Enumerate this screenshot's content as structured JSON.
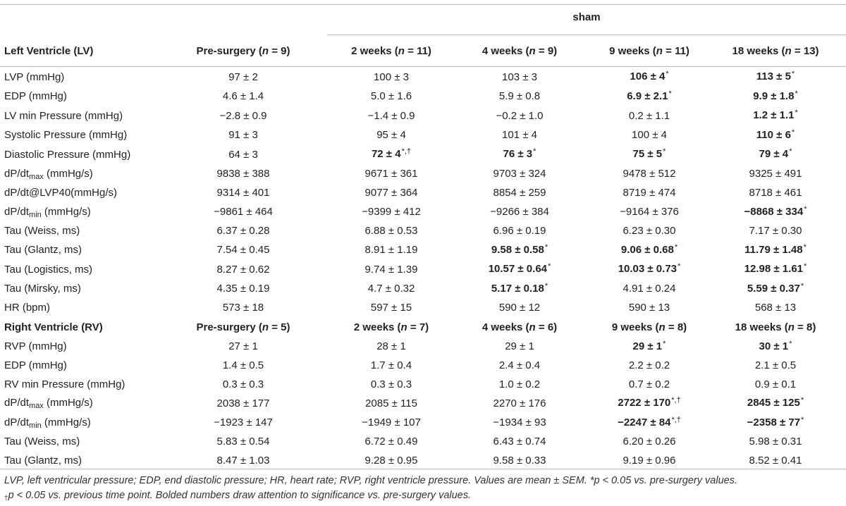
{
  "group_header": "sham",
  "lv_header": [
    "Left Ventricle (LV)",
    "Pre-surgery (",
    "n",
    " = 9)",
    "2 weeks (",
    "n",
    " = 11)",
    "4 weeks (",
    "n",
    " = 9)",
    "9 weeks (",
    "n",
    " = 11)",
    "18 weeks (",
    "n",
    " = 13)"
  ],
  "lv_header_cols": [
    {
      "pre": "Pre-surgery (",
      "n": "n",
      "post": " = 9)"
    },
    {
      "pre": "2 weeks (",
      "n": "n",
      "post": " = 11)"
    },
    {
      "pre": "4 weeks (",
      "n": "n",
      "post": " = 9)"
    },
    {
      "pre": "9 weeks (",
      "n": "n",
      "post": " = 11)"
    },
    {
      "pre": "18 weeks (",
      "n": "n",
      "post": " = 13)"
    }
  ],
  "lv_title": "Left Ventricle (LV)",
  "lv_rows": [
    {
      "label": "LVP (mmHg)",
      "cells": [
        {
          "v": "97 ± 2"
        },
        {
          "v": "100 ± 3"
        },
        {
          "v": "103 ± 3"
        },
        {
          "v": "106 ± 4",
          "b": true,
          "m": "*"
        },
        {
          "v": "113 ± 5",
          "b": true,
          "m": "*"
        }
      ]
    },
    {
      "label": "EDP (mmHg)",
      "cells": [
        {
          "v": "4.6 ± 1.4"
        },
        {
          "v": "5.0 ± 1.6"
        },
        {
          "v": "5.9 ± 0.8"
        },
        {
          "v": "6.9 ± 2.1",
          "b": true,
          "m": "*"
        },
        {
          "v": "9.9 ± 1.8",
          "b": true,
          "m": "*"
        }
      ]
    },
    {
      "label": "LV min Pressure (mmHg)",
      "cells": [
        {
          "v": "−2.8 ± 0.9"
        },
        {
          "v": "−1.4 ± 0.9"
        },
        {
          "v": "−0.2 ± 1.0"
        },
        {
          "v": "0.2 ± 1.1"
        },
        {
          "v": "1.2 ± 1.1",
          "b": true,
          "m": "*"
        }
      ]
    },
    {
      "label": "Systolic Pressure (mmHg)",
      "cells": [
        {
          "v": "91 ± 3"
        },
        {
          "v": "95 ± 4"
        },
        {
          "v": "101 ± 4"
        },
        {
          "v": "100 ± 4"
        },
        {
          "v": "110 ± 6",
          "b": true,
          "m": "*"
        }
      ]
    },
    {
      "label": "Diastolic Pressure (mmHg)",
      "cells": [
        {
          "v": "64 ± 3"
        },
        {
          "v": "72 ± 4",
          "b": true,
          "m": "*,†"
        },
        {
          "v": "76 ± 3",
          "b": true,
          "m": "*"
        },
        {
          "v": "75 ± 5",
          "b": true,
          "m": "*"
        },
        {
          "v": "79 ± 4",
          "b": true,
          "m": "*"
        }
      ]
    },
    {
      "label": "dP/dt",
      "sub": "max",
      "label_post": " (mmHg/s)",
      "cells": [
        {
          "v": "9838 ± 388"
        },
        {
          "v": "9671 ± 361"
        },
        {
          "v": "9703 ± 324"
        },
        {
          "v": "9478 ± 512"
        },
        {
          "v": "9325 ± 491"
        }
      ]
    },
    {
      "label": "dP/dt@LVP40(mmHg/s)",
      "cells": [
        {
          "v": "9314 ± 401"
        },
        {
          "v": "9077 ± 364"
        },
        {
          "v": "8854 ± 259"
        },
        {
          "v": "8719 ± 474"
        },
        {
          "v": "8718 ± 461"
        }
      ]
    },
    {
      "label": "dP/dt",
      "sub": "min",
      "label_post": " (mmHg/s)",
      "cells": [
        {
          "v": "−9861 ± 464"
        },
        {
          "v": "−9399 ± 412"
        },
        {
          "v": "−9266 ± 384"
        },
        {
          "v": "−9164 ± 376"
        },
        {
          "v": "−8868 ± 334",
          "b": true,
          "m": "*"
        }
      ]
    },
    {
      "label": "Tau (Weiss, ms)",
      "cells": [
        {
          "v": "6.37 ± 0.28"
        },
        {
          "v": "6.88 ± 0.53"
        },
        {
          "v": "6.96 ± 0.19"
        },
        {
          "v": "6.23 ± 0.30"
        },
        {
          "v": "7.17 ± 0.30"
        }
      ]
    },
    {
      "label": "Tau (Glantz, ms)",
      "cells": [
        {
          "v": "7.54 ± 0.45"
        },
        {
          "v": "8.91 ± 1.19"
        },
        {
          "v": "9.58 ± 0.58",
          "b": true,
          "m": "*"
        },
        {
          "v": "9.06 ± 0.68",
          "b": true,
          "m": "*"
        },
        {
          "v": "11.79 ± 1.48",
          "b": true,
          "m": "*"
        }
      ]
    },
    {
      "label": "Tau (Logistics, ms)",
      "cells": [
        {
          "v": "8.27 ± 0.62"
        },
        {
          "v": "9.74 ± 1.39"
        },
        {
          "v": "10.57 ± 0.64",
          "b": true,
          "m": "*"
        },
        {
          "v": "10.03 ± 0.73",
          "b": true,
          "m": "*"
        },
        {
          "v": "12.98 ± 1.61",
          "b": true,
          "m": "*"
        }
      ]
    },
    {
      "label": "Tau (Mirsky, ms)",
      "cells": [
        {
          "v": "4.35 ± 0.19"
        },
        {
          "v": "4.7 ± 0.32"
        },
        {
          "v": "5.17 ± 0.18",
          "b": true,
          "m": "*"
        },
        {
          "v": "4.91 ± 0.24"
        },
        {
          "v": "5.59 ± 0.37",
          "b": true,
          "m": "*"
        }
      ]
    },
    {
      "label": "HR (bpm)",
      "cells": [
        {
          "v": "573 ± 18"
        },
        {
          "v": "597 ± 15"
        },
        {
          "v": "590 ± 12"
        },
        {
          "v": "590 ± 13"
        },
        {
          "v": "568 ± 13"
        }
      ]
    }
  ],
  "rv_title": "Right Ventricle (RV)",
  "rv_header_cols": [
    {
      "pre": "Pre-surgery (",
      "n": "n",
      "post": " = 5)"
    },
    {
      "pre": "2 weeks (",
      "n": "n",
      "post": " = 7)"
    },
    {
      "pre": "4 weeks (",
      "n": "n",
      "post": " = 6)"
    },
    {
      "pre": "9 weeks (",
      "n": "n",
      "post": " = 8)"
    },
    {
      "pre": "18 weeks (",
      "n": "n",
      "post": " = 8)"
    }
  ],
  "rv_rows": [
    {
      "label": "RVP (mmHg)",
      "cells": [
        {
          "v": "27 ± 1"
        },
        {
          "v": "28 ± 1"
        },
        {
          "v": "29 ± 1"
        },
        {
          "v": "29 ± 1",
          "b": true,
          "m": "*"
        },
        {
          "v": "30 ± 1",
          "b": true,
          "m": "*"
        }
      ]
    },
    {
      "label": "EDP (mmHg)",
      "cells": [
        {
          "v": "1.4 ± 0.5"
        },
        {
          "v": "1.7 ± 0.4"
        },
        {
          "v": "2.4 ± 0.4"
        },
        {
          "v": "2.2 ± 0.2"
        },
        {
          "v": "2.1 ± 0.5"
        }
      ]
    },
    {
      "label": "RV min Pressure (mmHg)",
      "cells": [
        {
          "v": "0.3 ± 0.3"
        },
        {
          "v": "0.3 ± 0.3"
        },
        {
          "v": "1.0 ± 0.2"
        },
        {
          "v": "0.7 ± 0.2"
        },
        {
          "v": "0.9 ± 0.1"
        }
      ]
    },
    {
      "label": "dP/dt",
      "sub": "max",
      "label_post": " (mmHg/s)",
      "cells": [
        {
          "v": "2038 ± 177"
        },
        {
          "v": "2085 ± 115"
        },
        {
          "v": "2270 ± 176"
        },
        {
          "v": "2722 ± 170",
          "b": true,
          "m": "*,†"
        },
        {
          "v": "2845 ± 125",
          "b": true,
          "m": "*"
        }
      ]
    },
    {
      "label": "dP/dt",
      "sub": "min",
      "label_post": " (mmHg/s)",
      "cells": [
        {
          "v": "−1923 ± 147"
        },
        {
          "v": "−1949 ± 107"
        },
        {
          "v": "−1934 ± 93"
        },
        {
          "v": "−2247 ± 84",
          "b": true,
          "m": "*,†"
        },
        {
          "v": "−2358 ± 77",
          "b": true,
          "m": "*"
        }
      ]
    },
    {
      "label": "Tau (Weiss, ms)",
      "cells": [
        {
          "v": "5.83 ± 0.54"
        },
        {
          "v": "6.72 ± 0.49"
        },
        {
          "v": "6.43 ± 0.74"
        },
        {
          "v": "6.20 ± 0.26"
        },
        {
          "v": "5.98 ± 0.31"
        }
      ]
    },
    {
      "label": "Tau (Glantz, ms)",
      "cells": [
        {
          "v": "8.47 ± 1.03"
        },
        {
          "v": "9.28 ± 0.95"
        },
        {
          "v": "9.58 ± 0.33"
        },
        {
          "v": "9.19 ± 0.96"
        },
        {
          "v": "8.52 ± 0.41"
        }
      ]
    }
  ],
  "footnote_line1": "LVP, left ventricular pressure; EDP, end diastolic pressure; HR, heart rate; RVP, right ventricle pressure. Values are mean ± SEM. *p < 0.05 vs. pre-surgery values.",
  "footnote_dagger": "†",
  "footnote_line2": "p < 0.05 vs. previous time point. Bolded numbers draw attention to significance vs. pre-surgery values."
}
